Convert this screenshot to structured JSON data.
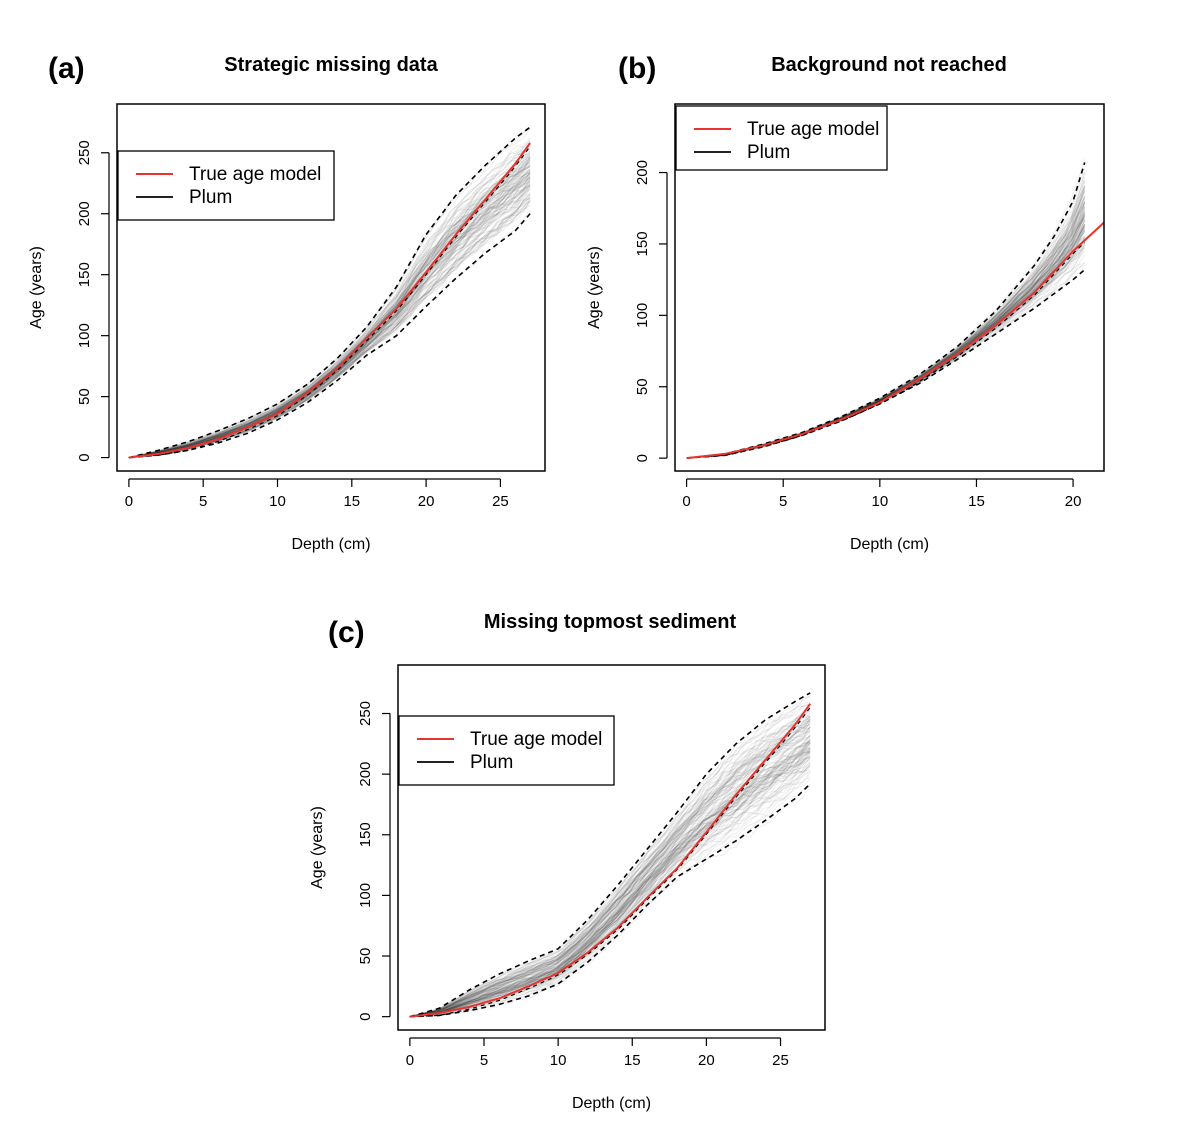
{
  "chart_data": [
    {
      "type": "line",
      "panel_label": "(a)",
      "title": "Strategic missing data",
      "xlabel": "Depth (cm)",
      "ylabel": "Age (years)",
      "xticks": [
        0,
        5,
        10,
        15,
        20,
        25
      ],
      "yticks": [
        0,
        50,
        100,
        150,
        200,
        250
      ],
      "xlim": [
        -0.8,
        28.0
      ],
      "ylim": [
        -11,
        290
      ],
      "legend_position": "top-left",
      "legend": [
        {
          "label": "True age model",
          "color": "#e8332e"
        },
        {
          "label": "Plum",
          "color": "#222222"
        }
      ],
      "series": [
        {
          "name": "True age model",
          "style": "solid",
          "color": "#e8332e",
          "x": [
            0,
            2,
            4,
            6,
            8,
            10,
            12,
            14,
            16,
            18,
            20,
            22,
            24,
            26,
            27
          ],
          "y": [
            0,
            3,
            8,
            15,
            25,
            36,
            53,
            73,
            98,
            122,
            152,
            183,
            212,
            241,
            258
          ]
        },
        {
          "name": "upper_ci",
          "style": "dashed",
          "color": "#000000",
          "x": [
            0,
            2,
            4,
            6,
            8,
            10,
            12,
            14,
            16,
            18,
            20,
            22,
            24,
            26,
            27
          ],
          "y": [
            0,
            6,
            13,
            22,
            32,
            44,
            60,
            81,
            107,
            140,
            183,
            215,
            240,
            262,
            271
          ]
        },
        {
          "name": "lower_ci",
          "style": "dashed",
          "color": "#000000",
          "x": [
            0,
            2,
            4,
            6,
            8,
            10,
            12,
            14,
            16,
            18,
            20,
            22,
            24,
            26,
            27
          ],
          "y": [
            0,
            2,
            6,
            12,
            20,
            31,
            45,
            63,
            84,
            100,
            124,
            147,
            168,
            186,
            200
          ]
        }
      ]
    },
    {
      "type": "line",
      "panel_label": "(b)",
      "title": "Background not reached",
      "xlabel": "Depth (cm)",
      "ylabel": "Age (years)",
      "xticks": [
        0,
        5,
        10,
        15,
        20
      ],
      "yticks": [
        0,
        50,
        100,
        150,
        200
      ],
      "xlim": [
        -0.6,
        21.6
      ],
      "ylim": [
        -9,
        248
      ],
      "legend_position": "top-left",
      "legend": [
        {
          "label": "True age model",
          "color": "#e8332e"
        },
        {
          "label": "Plum",
          "color": "#222222"
        }
      ],
      "series": [
        {
          "name": "True age model",
          "style": "solid",
          "color": "#e8332e",
          "x": [
            0,
            2,
            4,
            6,
            8,
            10,
            12,
            14,
            16,
            18,
            20,
            21.6
          ],
          "y": [
            0,
            3,
            9,
            17,
            27,
            39,
            55,
            73,
            93,
            116,
            145,
            165
          ]
        },
        {
          "name": "upper_ci",
          "style": "dashed",
          "color": "#000000",
          "x": [
            0,
            2,
            4,
            6,
            8,
            10,
            12,
            14,
            16,
            18,
            19,
            20,
            20.6
          ],
          "y": [
            0,
            3,
            10,
            18,
            29,
            42,
            58,
            78,
            103,
            135,
            155,
            180,
            207
          ]
        },
        {
          "name": "lower_ci",
          "style": "dashed",
          "color": "#000000",
          "x": [
            0,
            2,
            4,
            6,
            8,
            10,
            12,
            14,
            16,
            18,
            19,
            20,
            20.6
          ],
          "y": [
            0,
            2,
            8,
            16,
            26,
            38,
            52,
            69,
            87,
            105,
            115,
            125,
            132
          ]
        }
      ]
    },
    {
      "type": "line",
      "panel_label": "(c)",
      "title": "Missing topmost sediment",
      "xlabel": "Depth (cm)",
      "ylabel": "Age (years)",
      "xticks": [
        0,
        5,
        10,
        15,
        20,
        25
      ],
      "yticks": [
        0,
        50,
        100,
        150,
        200,
        250
      ],
      "xlim": [
        -0.8,
        28.0
      ],
      "ylim": [
        -11,
        290
      ],
      "legend_position": "top-left",
      "legend": [
        {
          "label": "True age model",
          "color": "#e8332e"
        },
        {
          "label": "Plum",
          "color": "#222222"
        }
      ],
      "series": [
        {
          "name": "True age model",
          "style": "solid",
          "color": "#e8332e",
          "x": [
            0,
            2,
            4,
            6,
            8,
            10,
            12,
            14,
            16,
            18,
            20,
            22,
            24,
            26,
            27
          ],
          "y": [
            0,
            3,
            8,
            15,
            25,
            36,
            53,
            73,
            98,
            122,
            152,
            183,
            212,
            241,
            258
          ]
        },
        {
          "name": "upper_ci",
          "style": "dashed",
          "color": "#000000",
          "x": [
            0,
            2,
            4,
            6,
            8,
            10,
            12,
            14,
            16,
            18,
            20,
            22,
            24,
            26,
            27
          ],
          "y": [
            0,
            7,
            22,
            35,
            46,
            56,
            80,
            108,
            138,
            168,
            200,
            225,
            245,
            260,
            267
          ]
        },
        {
          "name": "lower_ci",
          "style": "dashed",
          "color": "#000000",
          "x": [
            0,
            2,
            4,
            6,
            8,
            10,
            12,
            14,
            16,
            18,
            20,
            22,
            24,
            26,
            27
          ],
          "y": [
            0,
            1,
            5,
            10,
            17,
            27,
            45,
            67,
            92,
            115,
            130,
            145,
            162,
            180,
            192
          ]
        }
      ]
    }
  ]
}
